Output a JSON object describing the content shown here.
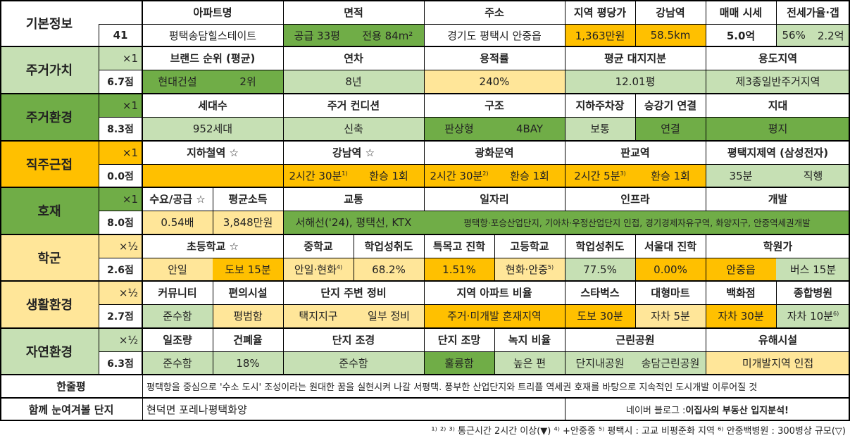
{
  "colors": {
    "light_green": "#c6e0b4",
    "mid_green": "#a9d08e",
    "green": "#70ad47",
    "orange": "#ffc000",
    "light_orange": "#ffe699",
    "white": "#ffffff",
    "border": "#000000"
  },
  "header_row": {
    "basic_info": "기본정보",
    "count": "41",
    "columns": [
      {
        "label": "아파트명",
        "value": "평택송담힐스테이트"
      },
      {
        "label": "면적",
        "value_a": "공급 33평",
        "value_b": "전용 84m²"
      },
      {
        "label": "주소",
        "value": "경기도 평택시 안중읍"
      },
      {
        "label": "지역 평당가",
        "value": "1,363만원"
      },
      {
        "label": "강남역",
        "value": "58.5km"
      },
      {
        "label": "매매 시세",
        "value": "5.0억"
      },
      {
        "label": "전세가율·갭",
        "value_a": "56%",
        "value_b": "2.2억"
      }
    ]
  },
  "sections": [
    {
      "name": "주거가치",
      "weight": "×1",
      "score": "6.7점",
      "headers": [
        "브랜드 순위 (평균)",
        "연차",
        "용적률",
        "평균 대지지분",
        "용도지역"
      ],
      "values": [
        "현대건설",
        "2위",
        "8년",
        "240%",
        "12.01평",
        "제3종일반주거지역"
      ]
    },
    {
      "name": "주거환경",
      "weight": "×1",
      "score": "8.3점",
      "headers": [
        "세대수",
        "주거 컨디션",
        "구조",
        "지하주차장",
        "승강기 연결",
        "지대"
      ],
      "values": [
        "952세대",
        "신축",
        "판상형",
        "4BAY",
        "보통",
        "연결",
        "평지"
      ]
    },
    {
      "name": "직주근접",
      "weight": "×1",
      "score": "0.0점",
      "headers": [
        "지하철역 ☆",
        "강남역 ☆",
        "광화문역",
        "판교역",
        "평택지제역 (삼성전자)"
      ],
      "values": [
        "2시간 30분",
        "1)",
        "환승 1회",
        "2시간 30분",
        "2)",
        "환승 1회",
        "2시간 5분",
        "3)",
        "환승 1회",
        "35분",
        "직행"
      ]
    },
    {
      "name": "호재",
      "weight": "×1",
      "score": "8.0점",
      "headers": [
        "수요/공급 ☆",
        "평균소득",
        "교통",
        "일자리",
        "인프라",
        "개발"
      ],
      "values": [
        "0.54배",
        "3,848만원",
        "서해선('24), 평택선, KTX",
        "평택항·포승산업단지, 기아차·우정산업단지 인접, 경기경제자유구역, 화양지구, 안중역세권개발"
      ]
    },
    {
      "name": "학군",
      "weight": "×½",
      "score": "2.6점",
      "headers": [
        "초등학교 ☆",
        "중학교",
        "학업성취도",
        "특목고 진학",
        "고등학교",
        "학업성취도",
        "서울대 진학",
        "학원가"
      ],
      "values": [
        "안일",
        "도보 15분",
        "안일·현화",
        "4)",
        "68.2%",
        "1.51%",
        "현화·안중",
        "5)",
        "77.5%",
        "0.00%",
        "안중읍",
        "버스 15분"
      ]
    },
    {
      "name": "생활환경",
      "weight": "×½",
      "score": "2.7점",
      "headers": [
        "커뮤니티",
        "편의시설",
        "단지 주변 정비",
        "지역 아파트 비율",
        "스타벅스",
        "대형마트",
        "백화점",
        "종합병원"
      ],
      "values": [
        "준수함",
        "평범함",
        "택지지구",
        "일부 정비",
        "주거·미개발 혼재지역",
        "도보 30분",
        "자차 5분",
        "자차 30분",
        "자차 10분",
        "6)"
      ]
    },
    {
      "name": "자연환경",
      "weight": "×½",
      "score": "6.3점",
      "headers": [
        "일조량",
        "건폐율",
        "단지 조경",
        "단지 조망",
        "녹지 비율",
        "근린공원",
        "유해시설"
      ],
      "values": [
        "준수함",
        "18%",
        "준수함",
        "훌륭함",
        "높은 편",
        "단지내공원",
        "송담근린공원",
        "미개발지역 인접"
      ]
    }
  ],
  "summary": {
    "label": "한줄평",
    "text": "평택항을 중심으로 '수소 도시' 조성이라는 원대한 꿈을 실현시켜 나갈 서평택. 풍부한 산업단지와 트리플 역세권 호재를 바탕으로 지속적인 도시개발 이루어질 것"
  },
  "related": {
    "label": "함께 눈여겨볼 단지",
    "value": "현덕면 포레나평택화양",
    "blog_prefix": "네이버 블로그 : ",
    "blog_name": "이집사의 부동산 입지분석!"
  },
  "footnote": "¹⁾ ²⁾ ³⁾ 통근시간 2시간 이상(▼) ⁴⁾ +안중중 ⁵⁾ 평택시 : 고교 비평준화 지역 ⁶⁾ 안중백병원 : 300병상 규모(▽)"
}
